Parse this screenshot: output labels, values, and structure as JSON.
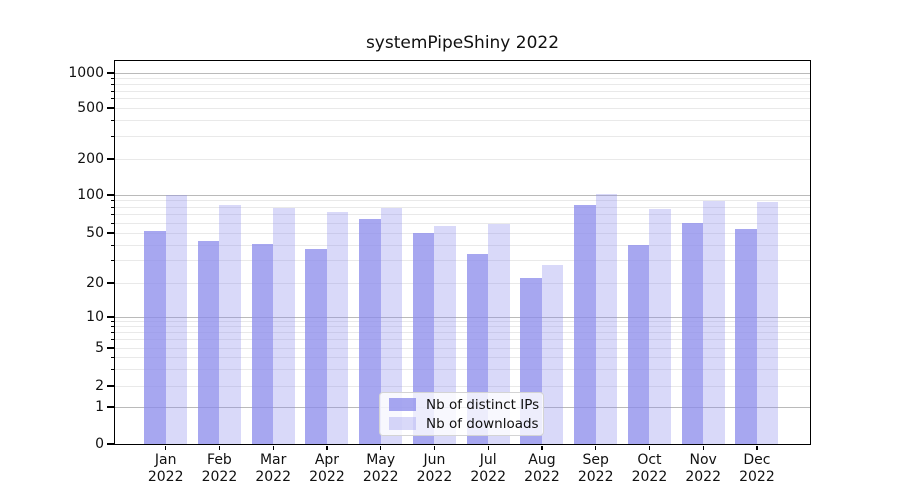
{
  "title": "systemPipeShiny 2022",
  "chart_data": {
    "type": "bar",
    "title": "systemPipeShiny 2022",
    "scale": "symlog",
    "grid": true,
    "legend_position": "lower center",
    "categories": [
      "Jan",
      "Feb",
      "Mar",
      "Apr",
      "May",
      "Jun",
      "Jul",
      "Aug",
      "Sep",
      "Oct",
      "Nov",
      "Dec"
    ],
    "year": "2022",
    "series": [
      {
        "name": "Nb of distinct IPs",
        "values": [
          52,
          43,
          41,
          37,
          64,
          50,
          34,
          22,
          83,
          40,
          60,
          54
        ],
        "color": "#8a8aeb",
        "alpha": 0.75
      },
      {
        "name": "Nb of downloads",
        "values": [
          100,
          84,
          79,
          74,
          79,
          57,
          59,
          28,
          101,
          78,
          89,
          88
        ],
        "color": "#8a8aeb",
        "alpha": 0.32
      }
    ],
    "yticks": [
      0,
      1,
      2,
      5,
      10,
      20,
      50,
      100,
      200,
      500,
      1000
    ],
    "ylim": [
      0,
      1250
    ]
  },
  "colors": {
    "bar_base": "#8a8aeb",
    "grid_major": "#bababa",
    "grid_minor": "#e9e9e9",
    "axis": "#000000",
    "text": "#111111",
    "legend_border": "#d4d4d4"
  }
}
